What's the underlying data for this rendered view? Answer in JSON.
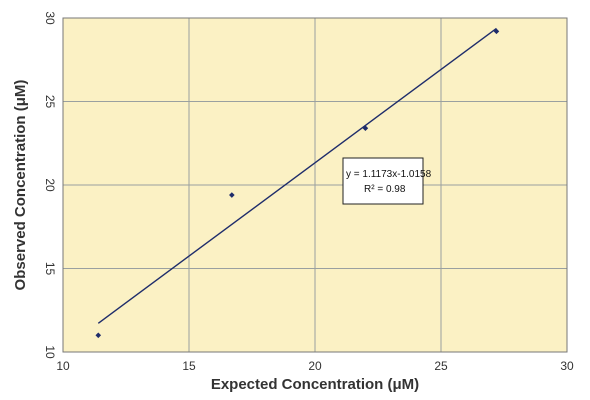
{
  "chart_data": {
    "type": "scatter",
    "xlabel": "Expected Concentration (μM)",
    "ylabel": "Observed Concentration (μM)",
    "xlim": [
      10,
      30
    ],
    "ylim": [
      10,
      30
    ],
    "x_ticks": [
      10,
      15,
      20,
      25,
      30
    ],
    "y_ticks": [
      10,
      15,
      20,
      25,
      30
    ],
    "grid": true,
    "series": [
      {
        "x": [
          11.4,
          16.7,
          22.0,
          27.2
        ],
        "y": [
          11.0,
          19.4,
          23.4,
          29.2
        ]
      }
    ],
    "trendline": {
      "slope": 1.1173,
      "intercept": -1.0158,
      "x_range": [
        11.4,
        27.2
      ],
      "equation": "y = 1.1173x-1.0158",
      "r2_label": "R² = 0.98"
    },
    "colors": {
      "plot_background": "#fbf1c4",
      "grid": "#9aa0a0",
      "marker": "#1f2d6b",
      "line": "#1f2d6b",
      "frame": "#777777"
    }
  }
}
